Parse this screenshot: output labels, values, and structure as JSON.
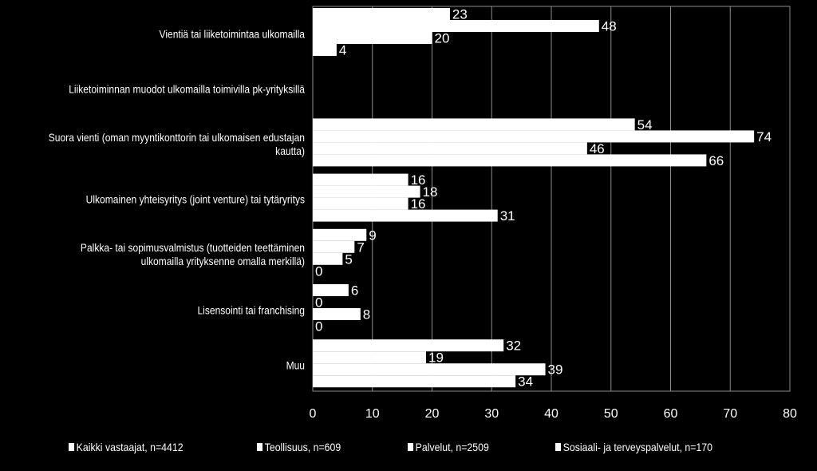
{
  "colors": {
    "background": "#000000",
    "bar": "#ffffff",
    "grid": "#8c8c8c"
  },
  "chart_data": {
    "type": "bar",
    "orientation": "horizontal",
    "title": "",
    "xlabel": "",
    "ylabel": "",
    "xlim": [
      0,
      80
    ],
    "x_ticks": [
      "0",
      "10",
      "20",
      "30",
      "40",
      "50",
      "60",
      "70",
      "80"
    ],
    "grid": "vertical",
    "legend_position": "bottom",
    "categories": [
      "Vientiä tai liiketoimintaa ulkomailla",
      "Liiketoiminnan muodot ulkomailla toimivilla pk-yrityksillä",
      "Suora vienti (oman myyntikonttorin tai ulkomaisen edustajan kautta)",
      "Ulkomainen yhteisyritys (joint venture) tai tytäryritys",
      "Palkka- tai sopimusvalmistus (tuotteiden teettäminen ulkomailla yrityksenne omalla merkillä)",
      "Lisensointi tai franchising",
      "Muu"
    ],
    "series": [
      {
        "name": "Kaikki vastaajat, n=4412",
        "values": [
          23,
          null,
          54,
          16,
          9,
          6,
          32
        ]
      },
      {
        "name": "Teollisuus, n=609",
        "values": [
          48,
          null,
          74,
          18,
          7,
          0,
          19
        ]
      },
      {
        "name": "Palvelut, n=2509",
        "values": [
          20,
          null,
          46,
          16,
          5,
          8,
          39
        ]
      },
      {
        "name": "Sosiaali- ja terveyspalvelut, n=170",
        "values": [
          4,
          null,
          66,
          31,
          0,
          0,
          34
        ]
      }
    ]
  }
}
